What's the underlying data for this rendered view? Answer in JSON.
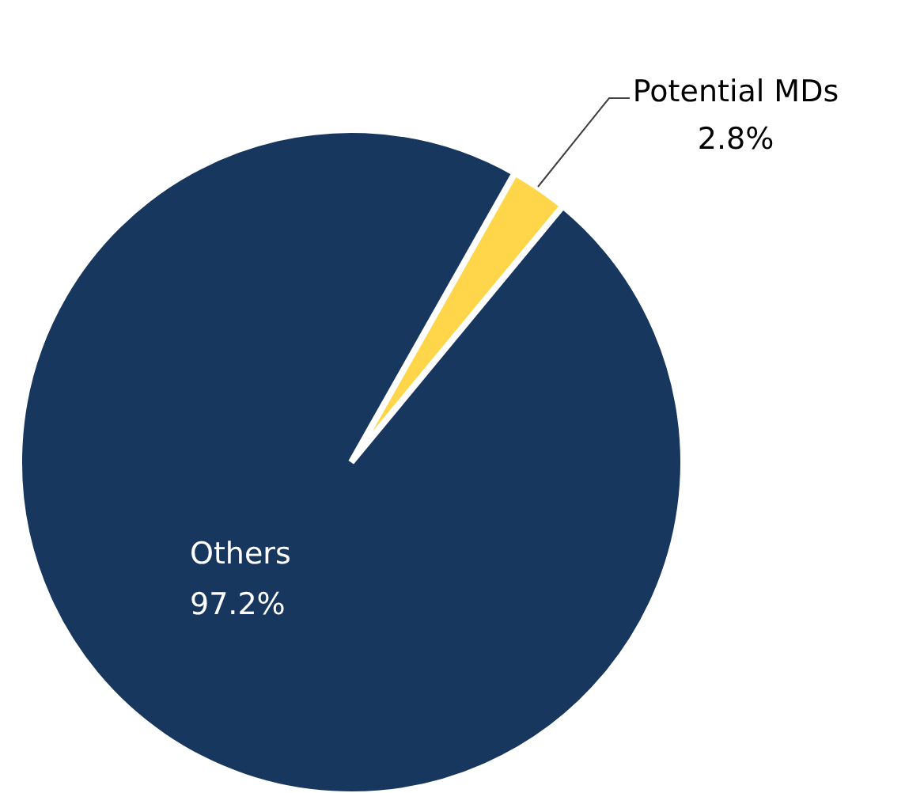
{
  "chart_data": {
    "type": "pie",
    "categories": [
      "Potential MDs",
      "Others"
    ],
    "values": [
      2.8,
      97.2
    ],
    "colors": [
      "#ffd54a",
      "#17375e"
    ],
    "value_labels": [
      "2.8%",
      "97.2%"
    ]
  }
}
